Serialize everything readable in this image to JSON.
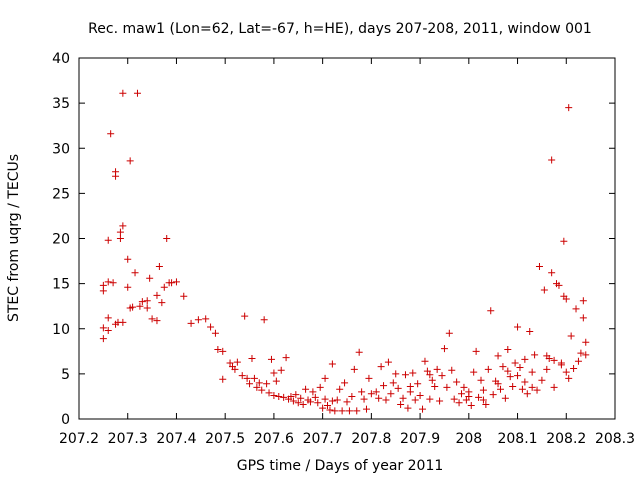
{
  "chart_data": {
    "type": "scatter",
    "title": "Rec. maw1 (Lon=62, Lat=-67, h=HE), days 207-208, 2011, window 001",
    "xlabel": "GPS time / Days of year 2011",
    "ylabel": "STEC from uqrg / TECUs",
    "xlim": [
      207.2,
      208.3
    ],
    "ylim": [
      0,
      40
    ],
    "xticks": [
      207.2,
      207.3,
      207.4,
      207.5,
      207.6,
      207.7,
      207.8,
      207.9,
      208,
      208.1,
      208.2,
      208.3
    ],
    "xtick_labels": [
      "207.2",
      "207.3",
      "207.4",
      "207.5",
      "207.6",
      "207.7",
      "207.8",
      "207.9",
      "208",
      "208.1",
      "208.2",
      "208.3"
    ],
    "yticks": [
      0,
      5,
      10,
      15,
      20,
      25,
      30,
      35,
      40
    ],
    "ytick_labels": [
      "0",
      "5",
      "10",
      "15",
      "20",
      "25",
      "30",
      "35",
      "40"
    ],
    "marker": "+",
    "color": "#cc0000",
    "grid": false,
    "series": [
      {
        "name": "STEC",
        "points": [
          [
            207.25,
            8.9
          ],
          [
            207.25,
            10.1
          ],
          [
            207.25,
            14.2
          ],
          [
            207.25,
            14.8
          ],
          [
            207.26,
            9.8
          ],
          [
            207.26,
            11.2
          ],
          [
            207.26,
            15.2
          ],
          [
            207.26,
            19.8
          ],
          [
            207.265,
            31.6
          ],
          [
            207.27,
            15.1
          ],
          [
            207.275,
            10.5
          ],
          [
            207.275,
            26.9
          ],
          [
            207.275,
            27.4
          ],
          [
            207.28,
            10.7
          ],
          [
            207.285,
            20.0
          ],
          [
            207.285,
            20.7
          ],
          [
            207.29,
            21.4
          ],
          [
            207.29,
            36.1
          ],
          [
            207.29,
            10.7
          ],
          [
            207.3,
            14.6
          ],
          [
            207.3,
            17.7
          ],
          [
            207.305,
            12.3
          ],
          [
            207.305,
            28.6
          ],
          [
            207.31,
            12.4
          ],
          [
            207.315,
            16.2
          ],
          [
            207.32,
            36.1
          ],
          [
            207.325,
            12.5
          ],
          [
            207.33,
            13.0
          ],
          [
            207.34,
            12.3
          ],
          [
            207.34,
            13.1
          ],
          [
            207.345,
            15.6
          ],
          [
            207.35,
            11.1
          ],
          [
            207.36,
            10.9
          ],
          [
            207.36,
            13.7
          ],
          [
            207.365,
            16.9
          ],
          [
            207.37,
            12.9
          ],
          [
            207.375,
            14.6
          ],
          [
            207.38,
            20.0
          ],
          [
            207.385,
            15.1
          ],
          [
            207.39,
            15.1
          ],
          [
            207.4,
            15.2
          ],
          [
            207.415,
            13.6
          ],
          [
            207.43,
            10.6
          ],
          [
            207.445,
            11.0
          ],
          [
            207.46,
            11.1
          ],
          [
            207.47,
            10.2
          ],
          [
            207.48,
            9.5
          ],
          [
            207.485,
            7.7
          ],
          [
            207.495,
            7.5
          ],
          [
            207.495,
            4.4
          ],
          [
            207.51,
            6.2
          ],
          [
            207.515,
            5.8
          ],
          [
            207.52,
            5.5
          ],
          [
            207.525,
            6.3
          ],
          [
            207.535,
            4.8
          ],
          [
            207.54,
            11.4
          ],
          [
            207.545,
            4.5
          ],
          [
            207.55,
            3.9
          ],
          [
            207.555,
            6.7
          ],
          [
            207.56,
            4.5
          ],
          [
            207.565,
            3.5
          ],
          [
            207.57,
            4.0
          ],
          [
            207.575,
            3.2
          ],
          [
            207.58,
            11.0
          ],
          [
            207.585,
            3.9
          ],
          [
            207.59,
            2.9
          ],
          [
            207.595,
            6.6
          ],
          [
            207.6,
            2.6
          ],
          [
            207.6,
            5.1
          ],
          [
            207.605,
            4.2
          ],
          [
            207.61,
            2.5
          ],
          [
            207.615,
            5.4
          ],
          [
            207.62,
            2.4
          ],
          [
            207.625,
            6.8
          ],
          [
            207.63,
            2.2
          ],
          [
            207.635,
            2.5
          ],
          [
            207.64,
            2.0
          ],
          [
            207.645,
            2.7
          ],
          [
            207.65,
            1.8
          ],
          [
            207.655,
            2.3
          ],
          [
            207.66,
            1.6
          ],
          [
            207.665,
            3.3
          ],
          [
            207.67,
            2.1
          ],
          [
            207.675,
            1.9
          ],
          [
            207.68,
            3.0
          ],
          [
            207.685,
            2.4
          ],
          [
            207.69,
            1.8
          ],
          [
            207.695,
            3.5
          ],
          [
            207.7,
            1.2
          ],
          [
            207.705,
            4.5
          ],
          [
            207.705,
            2.2
          ],
          [
            207.71,
            1.5
          ],
          [
            207.715,
            1.0
          ],
          [
            207.72,
            6.1
          ],
          [
            207.72,
            2.0
          ],
          [
            207.725,
            0.9
          ],
          [
            207.73,
            2.1
          ],
          [
            207.735,
            3.3
          ],
          [
            207.74,
            0.9
          ],
          [
            207.745,
            4.0
          ],
          [
            207.75,
            1.9
          ],
          [
            207.755,
            0.9
          ],
          [
            207.76,
            2.5
          ],
          [
            207.765,
            5.5
          ],
          [
            207.77,
            0.9
          ],
          [
            207.775,
            7.4
          ],
          [
            207.78,
            3.0
          ],
          [
            207.785,
            2.2
          ],
          [
            207.79,
            1.1
          ],
          [
            207.795,
            4.5
          ],
          [
            207.8,
            2.8
          ],
          [
            207.81,
            3.0
          ],
          [
            207.815,
            2.3
          ],
          [
            207.82,
            5.8
          ],
          [
            207.825,
            3.7
          ],
          [
            207.83,
            2.1
          ],
          [
            207.835,
            6.3
          ],
          [
            207.84,
            2.8
          ],
          [
            207.845,
            4.0
          ],
          [
            207.85,
            5.0
          ],
          [
            207.855,
            3.4
          ],
          [
            207.86,
            1.6
          ],
          [
            207.865,
            2.3
          ],
          [
            207.87,
            4.9
          ],
          [
            207.875,
            1.2
          ],
          [
            207.88,
            3.0
          ],
          [
            207.885,
            5.1
          ],
          [
            207.89,
            2.1
          ],
          [
            207.895,
            3.9
          ],
          [
            207.9,
            2.6
          ],
          [
            207.905,
            1.1
          ],
          [
            207.91,
            6.4
          ],
          [
            207.915,
            5.3
          ],
          [
            207.92,
            2.2
          ],
          [
            207.925,
            4.3
          ],
          [
            207.93,
            3.6
          ],
          [
            207.935,
            5.5
          ],
          [
            207.94,
            2.0
          ],
          [
            207.945,
            4.8
          ],
          [
            207.95,
            7.8
          ],
          [
            207.955,
            3.5
          ],
          [
            207.96,
            9.5
          ],
          [
            207.965,
            5.4
          ],
          [
            207.97,
            2.2
          ],
          [
            207.975,
            4.1
          ],
          [
            207.98,
            1.8
          ],
          [
            207.985,
            2.8
          ],
          [
            207.99,
            3.5
          ],
          [
            207.995,
            2.1
          ],
          [
            208.0,
            3.0
          ],
          [
            208.005,
            1.5
          ],
          [
            208.01,
            5.2
          ],
          [
            208.015,
            7.5
          ],
          [
            208.02,
            2.4
          ],
          [
            208.025,
            4.3
          ],
          [
            208.03,
            3.2
          ],
          [
            208.035,
            1.6
          ],
          [
            208.04,
            5.5
          ],
          [
            208.045,
            12.0
          ],
          [
            208.05,
            2.7
          ],
          [
            208.055,
            4.2
          ],
          [
            208.06,
            7.0
          ],
          [
            208.065,
            3.3
          ],
          [
            208.07,
            5.8
          ],
          [
            208.075,
            2.3
          ],
          [
            208.08,
            7.7
          ],
          [
            208.085,
            4.7
          ],
          [
            208.09,
            3.6
          ],
          [
            208.095,
            6.2
          ],
          [
            208.1,
            10.2
          ],
          [
            208.1,
            4.8
          ],
          [
            208.105,
            5.7
          ],
          [
            208.11,
            3.3
          ],
          [
            208.115,
            6.6
          ],
          [
            208.12,
            2.8
          ],
          [
            208.125,
            9.7
          ],
          [
            208.13,
            5.2
          ],
          [
            208.135,
            7.1
          ],
          [
            208.14,
            3.2
          ],
          [
            208.145,
            16.9
          ],
          [
            208.15,
            4.3
          ],
          [
            208.155,
            14.3
          ],
          [
            208.16,
            5.5
          ],
          [
            208.165,
            6.7
          ],
          [
            208.17,
            28.7
          ],
          [
            208.17,
            16.2
          ],
          [
            208.175,
            6.5
          ],
          [
            208.18,
            15.0
          ],
          [
            208.185,
            14.8
          ],
          [
            208.19,
            6.2
          ],
          [
            208.195,
            19.7
          ],
          [
            208.195,
            13.6
          ],
          [
            208.2,
            13.3
          ],
          [
            208.205,
            34.5
          ],
          [
            208.205,
            4.5
          ],
          [
            208.21,
            9.2
          ],
          [
            208.215,
            5.6
          ],
          [
            208.22,
            12.2
          ],
          [
            208.225,
            6.4
          ],
          [
            208.23,
            7.3
          ],
          [
            208.235,
            13.1
          ],
          [
            208.235,
            11.2
          ],
          [
            208.24,
            7.1
          ],
          [
            208.24,
            8.5
          ],
          [
            208.115,
            4.1
          ],
          [
            208.13,
            3.5
          ],
          [
            208.16,
            7.0
          ],
          [
            208.175,
            3.5
          ],
          [
            208.19,
            6.0
          ],
          [
            208.2,
            5.2
          ],
          [
            208.08,
            5.3
          ],
          [
            208.06,
            3.9
          ],
          [
            208.03,
            2.1
          ],
          [
            208.0,
            2.5
          ],
          [
            207.92,
            4.9
          ],
          [
            207.88,
            3.6
          ]
        ]
      }
    ]
  }
}
